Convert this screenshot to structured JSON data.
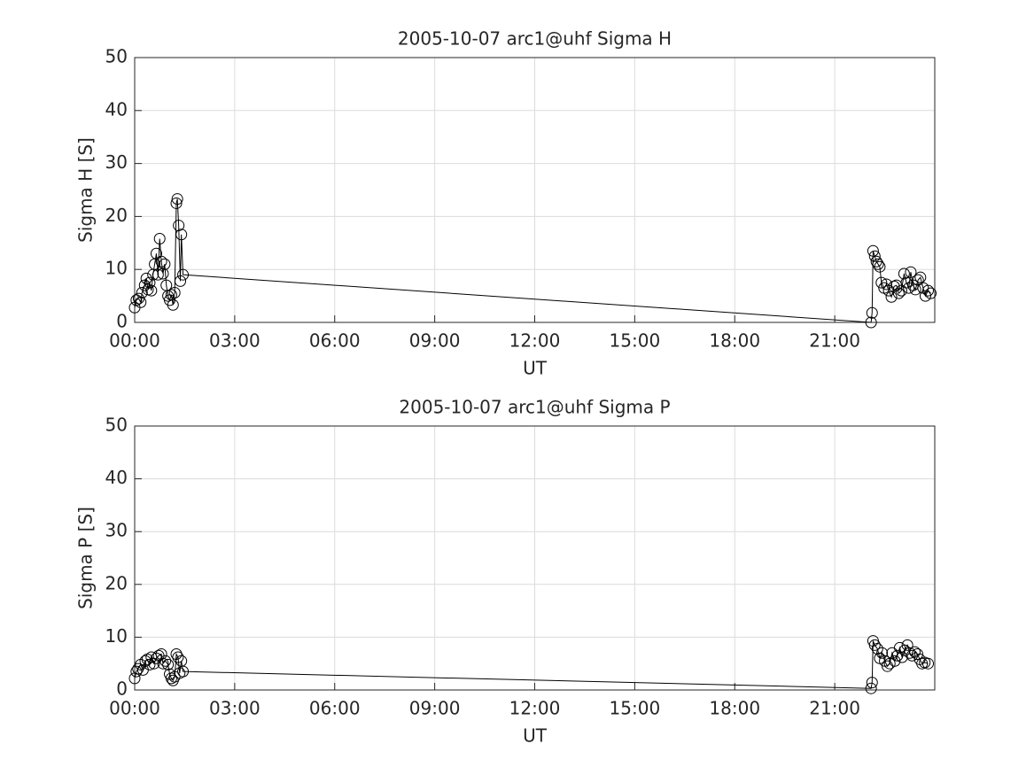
{
  "chart_data": [
    {
      "type": "line",
      "title": "2005-10-07  arc1@uhf Sigma H",
      "xlabel": "UT",
      "ylabel": "Sigma H [S]",
      "xlim": [
        0,
        24
      ],
      "ylim": [
        0,
        50
      ],
      "grid": true,
      "marker": "circle",
      "color": "#000000",
      "xticks": [
        {
          "value": 0,
          "label": "00:00"
        },
        {
          "value": 3,
          "label": "03:00"
        },
        {
          "value": 6,
          "label": "06:00"
        },
        {
          "value": 9,
          "label": "09:00"
        },
        {
          "value": 12,
          "label": "12:00"
        },
        {
          "value": 15,
          "label": "15:00"
        },
        {
          "value": 18,
          "label": "18:00"
        },
        {
          "value": 21,
          "label": "21:00"
        }
      ],
      "yticks": [
        0,
        10,
        20,
        30,
        40,
        50
      ],
      "x": [
        0.0,
        0.05,
        0.12,
        0.18,
        0.22,
        0.3,
        0.35,
        0.4,
        0.45,
        0.5,
        0.55,
        0.6,
        0.65,
        0.7,
        0.75,
        0.8,
        0.85,
        0.9,
        0.95,
        1.0,
        1.05,
        1.1,
        1.15,
        1.2,
        1.25,
        1.28,
        1.32,
        1.37,
        1.4,
        1.45,
        22.09,
        22.12,
        22.15,
        22.2,
        22.25,
        22.3,
        22.35,
        22.4,
        22.48,
        22.55,
        22.62,
        22.7,
        22.78,
        22.85,
        22.92,
        23.0,
        23.08,
        23.15,
        23.22,
        23.28,
        23.35,
        23.42,
        23.5,
        23.57,
        23.65,
        23.72,
        23.8,
        23.88
      ],
      "values": [
        2.8,
        4.2,
        4.5,
        3.8,
        5.6,
        7.0,
        8.3,
        6.2,
        7.5,
        6.0,
        9.0,
        11.0,
        13.0,
        9.0,
        15.8,
        11.5,
        9.2,
        11.0,
        7.0,
        5.0,
        4.2,
        5.2,
        3.3,
        5.6,
        22.5,
        23.3,
        18.3,
        7.8,
        16.6,
        9.0,
        0.0,
        1.8,
        13.5,
        12.5,
        11.5,
        11.0,
        10.5,
        7.5,
        6.5,
        7.2,
        6.0,
        4.8,
        6.8,
        7.0,
        5.5,
        6.0,
        9.2,
        7.5,
        6.5,
        9.5,
        7.0,
        6.2,
        8.0,
        8.5,
        6.5,
        5.0,
        6.0,
        5.5
      ]
    },
    {
      "type": "line",
      "title": "2005-10-07  arc1@uhf Sigma P",
      "xlabel": "UT",
      "ylabel": "Sigma P [S]",
      "xlim": [
        0,
        24
      ],
      "ylim": [
        0,
        50
      ],
      "grid": true,
      "marker": "circle",
      "color": "#000000",
      "xticks": [
        {
          "value": 0,
          "label": "00:00"
        },
        {
          "value": 3,
          "label": "03:00"
        },
        {
          "value": 6,
          "label": "06:00"
        },
        {
          "value": 9,
          "label": "09:00"
        },
        {
          "value": 12,
          "label": "12:00"
        },
        {
          "value": 15,
          "label": "15:00"
        },
        {
          "value": 18,
          "label": "18:00"
        },
        {
          "value": 21,
          "label": "21:00"
        }
      ],
      "yticks": [
        0,
        10,
        20,
        30,
        40,
        50
      ],
      "x": [
        0.0,
        0.05,
        0.1,
        0.18,
        0.25,
        0.32,
        0.38,
        0.45,
        0.5,
        0.58,
        0.65,
        0.72,
        0.8,
        0.85,
        0.92,
        1.0,
        1.05,
        1.1,
        1.15,
        1.2,
        1.25,
        1.3,
        1.35,
        1.4,
        1.45,
        22.09,
        22.12,
        22.15,
        22.2,
        22.28,
        22.35,
        22.42,
        22.5,
        22.58,
        22.65,
        22.72,
        22.8,
        22.88,
        22.95,
        23.02,
        23.1,
        23.18,
        23.25,
        23.32,
        23.4,
        23.48,
        23.55,
        23.62,
        23.7,
        23.8
      ],
      "values": [
        2.2,
        3.5,
        4.0,
        4.8,
        3.8,
        5.5,
        5.8,
        4.8,
        6.2,
        5.0,
        6.0,
        6.5,
        6.8,
        5.0,
        5.5,
        4.8,
        3.0,
        2.2,
        1.8,
        2.5,
        6.8,
        6.2,
        3.2,
        5.5,
        3.5,
        0.3,
        1.4,
        9.3,
        8.5,
        7.8,
        6.0,
        7.0,
        5.5,
        4.5,
        5.0,
        7.0,
        5.5,
        6.5,
        8.0,
        6.2,
        7.5,
        8.5,
        7.0,
        6.5,
        7.2,
        6.8,
        5.8,
        5.0,
        5.2,
        5.0
      ]
    }
  ]
}
